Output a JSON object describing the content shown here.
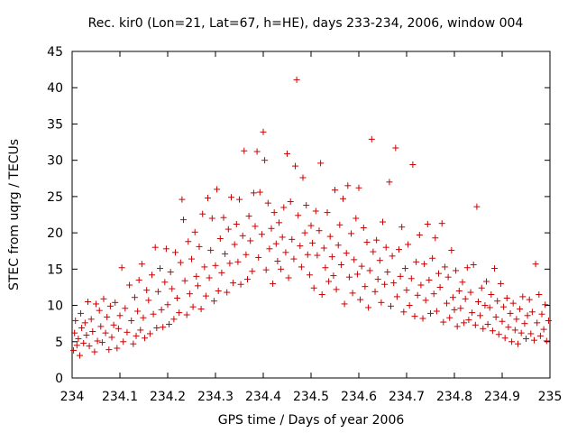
{
  "chart_data": {
    "type": "scatter",
    "title": "Rec. kir0 (Lon=21, Lat=67, h=HE), days 233-234, 2006, window 004",
    "xlabel": "GPS time / Days of year 2006",
    "ylabel": "STEC from uqrg / TECUs",
    "xlim": [
      234,
      235
    ],
    "ylim": [
      0,
      45
    ],
    "x_ticks": [
      "234",
      "234.1",
      "234.2",
      "234.3",
      "234.4",
      "234.5",
      "234.6",
      "234.7",
      "234.8",
      "234.9",
      "235"
    ],
    "y_ticks": [
      "0",
      "5",
      "10",
      "15",
      "20",
      "25",
      "30",
      "35",
      "40",
      "45"
    ],
    "grid": false,
    "legend": "none",
    "marker": "+",
    "color": "#cc0000",
    "series": [
      {
        "points": [
          [
            234.003,
            3.8
          ],
          [
            234.005,
            6.2
          ],
          [
            234.007,
            7.9
          ],
          [
            234.01,
            4.5
          ],
          [
            234.013,
            5.4
          ],
          [
            234.016,
            3.1
          ],
          [
            234.018,
            8.9
          ],
          [
            234.02,
            6.9
          ],
          [
            234.024,
            4.8
          ],
          [
            234.027,
            7.6
          ],
          [
            234.03,
            5.9
          ],
          [
            234.033,
            10.5
          ],
          [
            234.036,
            4.4
          ],
          [
            234.04,
            8.1
          ],
          [
            234.043,
            6.4
          ],
          [
            234.047,
            3.6
          ],
          [
            234.05,
            10.2
          ],
          [
            234.053,
            5.1
          ],
          [
            234.057,
            9.3
          ],
          [
            234.06,
            7.1
          ],
          [
            234.063,
            4.9
          ],
          [
            234.066,
            10.9
          ],
          [
            234.07,
            6.2
          ],
          [
            234.073,
            8.4
          ],
          [
            234.077,
            3.9
          ],
          [
            234.08,
            9.9
          ],
          [
            234.083,
            5.6
          ],
          [
            234.087,
            7.3
          ],
          [
            234.09,
            10.4
          ],
          [
            234.094,
            4.1
          ],
          [
            234.097,
            6.8
          ],
          [
            234.1,
            8.6
          ],
          [
            234.104,
            15.2
          ],
          [
            234.107,
            5.0
          ],
          [
            234.111,
            9.6
          ],
          [
            234.115,
            6.3
          ],
          [
            234.12,
            12.8
          ],
          [
            234.124,
            7.9
          ],
          [
            234.128,
            4.7
          ],
          [
            234.131,
            11.1
          ],
          [
            234.134,
            5.8
          ],
          [
            234.137,
            9.2
          ],
          [
            234.14,
            13.5
          ],
          [
            234.143,
            6.6
          ],
          [
            234.146,
            15.7
          ],
          [
            234.149,
            8.3
          ],
          [
            234.152,
            5.5
          ],
          [
            234.156,
            12.1
          ],
          [
            234.16,
            10.7
          ],
          [
            234.163,
            6.1
          ],
          [
            234.167,
            14.2
          ],
          [
            234.17,
            8.8
          ],
          [
            234.174,
            18.0
          ],
          [
            234.177,
            6.9
          ],
          [
            234.18,
            11.9
          ],
          [
            234.184,
            15.1
          ],
          [
            234.187,
            9.4
          ],
          [
            234.19,
            7.0
          ],
          [
            234.194,
            13.2
          ],
          [
            234.197,
            17.8
          ],
          [
            234.2,
            10.1
          ],
          [
            234.203,
            7.4
          ],
          [
            234.206,
            14.6
          ],
          [
            234.209,
            12.3
          ],
          [
            234.213,
            8.1
          ],
          [
            234.216,
            17.3
          ],
          [
            234.22,
            11.0
          ],
          [
            234.224,
            9.0
          ],
          [
            234.227,
            15.9
          ],
          [
            234.23,
            24.6
          ],
          [
            234.233,
            21.8
          ],
          [
            234.236,
            13.4
          ],
          [
            234.24,
            8.7
          ],
          [
            234.243,
            18.8
          ],
          [
            234.246,
            11.6
          ],
          [
            234.25,
            16.4
          ],
          [
            234.253,
            9.8
          ],
          [
            234.257,
            20.1
          ],
          [
            234.26,
            14.0
          ],
          [
            234.263,
            12.7
          ],
          [
            234.266,
            18.1
          ],
          [
            234.27,
            9.5
          ],
          [
            234.273,
            22.6
          ],
          [
            234.277,
            15.3
          ],
          [
            234.28,
            11.3
          ],
          [
            234.284,
            24.8
          ],
          [
            234.287,
            13.8
          ],
          [
            234.29,
            17.6
          ],
          [
            234.293,
            22.0
          ],
          [
            234.297,
            10.6
          ],
          [
            234.3,
            15.5
          ],
          [
            234.303,
            26.0
          ],
          [
            234.306,
            12.0
          ],
          [
            234.31,
            19.2
          ],
          [
            234.313,
            14.5
          ],
          [
            234.317,
            22.1
          ],
          [
            234.32,
            17.1
          ],
          [
            234.324,
            11.8
          ],
          [
            234.327,
            20.5
          ],
          [
            234.33,
            15.8
          ],
          [
            234.333,
            24.9
          ],
          [
            234.337,
            13.1
          ],
          [
            234.34,
            18.4
          ],
          [
            234.344,
            21.2
          ],
          [
            234.347,
            16.0
          ],
          [
            234.35,
            24.6
          ],
          [
            234.353,
            12.9
          ],
          [
            234.357,
            19.6
          ],
          [
            234.36,
            31.3
          ],
          [
            234.364,
            17.0
          ],
          [
            234.367,
            13.6
          ],
          [
            234.37,
            22.3
          ],
          [
            234.373,
            18.9
          ],
          [
            234.377,
            14.7
          ],
          [
            234.38,
            25.5
          ],
          [
            234.383,
            20.9
          ],
          [
            234.387,
            31.2
          ],
          [
            234.39,
            16.6
          ],
          [
            234.393,
            25.6
          ],
          [
            234.397,
            19.8
          ],
          [
            234.4,
            33.9
          ],
          [
            234.403,
            30.0
          ],
          [
            234.406,
            14.9
          ],
          [
            234.41,
            24.1
          ],
          [
            234.413,
            17.8
          ],
          [
            234.417,
            20.6
          ],
          [
            234.42,
            13.0
          ],
          [
            234.423,
            22.8
          ],
          [
            234.427,
            18.5
          ],
          [
            234.43,
            16.1
          ],
          [
            234.433,
            21.4
          ],
          [
            234.437,
            15.0
          ],
          [
            234.44,
            19.4
          ],
          [
            234.443,
            23.5
          ],
          [
            234.447,
            17.3
          ],
          [
            234.45,
            30.9
          ],
          [
            234.453,
            13.8
          ],
          [
            234.457,
            24.3
          ],
          [
            234.46,
            19.1
          ],
          [
            234.464,
            16.4
          ],
          [
            234.467,
            29.2
          ],
          [
            234.47,
            41.1
          ],
          [
            234.473,
            22.4
          ],
          [
            234.477,
            18.2
          ],
          [
            234.48,
            15.3
          ],
          [
            234.483,
            27.6
          ],
          [
            234.487,
            20.0
          ],
          [
            234.49,
            23.8
          ],
          [
            234.493,
            17.0
          ],
          [
            234.497,
            14.2
          ],
          [
            234.5,
            21.0
          ],
          [
            234.503,
            18.6
          ],
          [
            234.506,
            12.4
          ],
          [
            234.51,
            23.0
          ],
          [
            234.513,
            16.9
          ],
          [
            234.517,
            20.3
          ],
          [
            234.52,
            29.6
          ],
          [
            234.523,
            11.5
          ],
          [
            234.527,
            17.9
          ],
          [
            234.53,
            15.2
          ],
          [
            234.534,
            22.8
          ],
          [
            234.537,
            13.3
          ],
          [
            234.54,
            19.5
          ],
          [
            234.544,
            16.7
          ],
          [
            234.547,
            14.1
          ],
          [
            234.55,
            25.9
          ],
          [
            234.553,
            12.2
          ],
          [
            234.557,
            18.3
          ],
          [
            234.56,
            21.1
          ],
          [
            234.563,
            15.6
          ],
          [
            234.567,
            24.7
          ],
          [
            234.57,
            10.2
          ],
          [
            234.574,
            17.2
          ],
          [
            234.577,
            26.5
          ],
          [
            234.58,
            13.9
          ],
          [
            234.584,
            19.9
          ],
          [
            234.587,
            11.7
          ],
          [
            234.59,
            16.3
          ],
          [
            234.594,
            22.0
          ],
          [
            234.597,
            14.3
          ],
          [
            234.6,
            26.2
          ],
          [
            234.603,
            10.8
          ],
          [
            234.606,
            15.4
          ],
          [
            234.61,
            20.7
          ],
          [
            234.613,
            12.6
          ],
          [
            234.617,
            18.7
          ],
          [
            234.62,
            9.7
          ],
          [
            234.623,
            14.8
          ],
          [
            234.627,
            32.9
          ],
          [
            234.63,
            17.4
          ],
          [
            234.634,
            11.9
          ],
          [
            234.637,
            19.0
          ],
          [
            234.64,
            13.6
          ],
          [
            234.644,
            16.2
          ],
          [
            234.647,
            10.4
          ],
          [
            234.65,
            21.5
          ],
          [
            234.654,
            12.9
          ],
          [
            234.657,
            18.0
          ],
          [
            234.66,
            14.6
          ],
          [
            234.664,
            27.0
          ],
          [
            234.667,
            9.9
          ],
          [
            234.67,
            16.8
          ],
          [
            234.673,
            13.1
          ],
          [
            234.677,
            31.7
          ],
          [
            234.68,
            11.2
          ],
          [
            234.684,
            17.7
          ],
          [
            234.687,
            14.0
          ],
          [
            234.69,
            20.8
          ],
          [
            234.694,
            9.1
          ],
          [
            234.697,
            15.1
          ],
          [
            234.7,
            12.1
          ],
          [
            234.703,
            18.4
          ],
          [
            234.706,
            10.0
          ],
          [
            234.71,
            13.7
          ],
          [
            234.713,
            29.4
          ],
          [
            234.717,
            8.5
          ],
          [
            234.72,
            16.0
          ],
          [
            234.723,
            11.4
          ],
          [
            234.727,
            19.7
          ],
          [
            234.73,
            12.8
          ],
          [
            234.734,
            8.2
          ],
          [
            234.737,
            15.7
          ],
          [
            234.74,
            10.7
          ],
          [
            234.744,
            21.2
          ],
          [
            234.747,
            13.5
          ],
          [
            234.75,
            8.9
          ],
          [
            234.754,
            16.5
          ],
          [
            234.757,
            11.6
          ],
          [
            234.76,
            19.3
          ],
          [
            234.763,
            9.2
          ],
          [
            234.767,
            14.4
          ],
          [
            234.77,
            12.5
          ],
          [
            234.774,
            21.3
          ],
          [
            234.777,
            7.7
          ],
          [
            234.78,
            15.3
          ],
          [
            234.784,
            10.3
          ],
          [
            234.787,
            13.9
          ],
          [
            234.79,
            8.3
          ],
          [
            234.794,
            17.6
          ],
          [
            234.797,
            11.1
          ],
          [
            234.8,
            9.4
          ],
          [
            234.803,
            14.8
          ],
          [
            234.806,
            7.1
          ],
          [
            234.81,
            12.0
          ],
          [
            234.813,
            9.6
          ],
          [
            234.817,
            13.2
          ],
          [
            234.82,
            7.6
          ],
          [
            234.823,
            10.9
          ],
          [
            234.827,
            15.2
          ],
          [
            234.83,
            8.0
          ],
          [
            234.834,
            11.8
          ],
          [
            234.837,
            9.0
          ],
          [
            234.84,
            15.6
          ],
          [
            234.844,
            7.3
          ],
          [
            234.847,
            23.6
          ],
          [
            234.85,
            10.5
          ],
          [
            234.854,
            8.6
          ],
          [
            234.857,
            12.4
          ],
          [
            234.86,
            6.8
          ],
          [
            234.864,
            10.0
          ],
          [
            234.867,
            13.3
          ],
          [
            234.87,
            7.4
          ],
          [
            234.874,
            9.7
          ],
          [
            234.877,
            11.5
          ],
          [
            234.88,
            6.5
          ],
          [
            234.884,
            15.1
          ],
          [
            234.887,
            8.4
          ],
          [
            234.89,
            10.6
          ],
          [
            234.893,
            6.0
          ],
          [
            234.897,
            13.0
          ],
          [
            234.9,
            7.8
          ],
          [
            234.903,
            9.8
          ],
          [
            234.906,
            5.5
          ],
          [
            234.91,
            11.0
          ],
          [
            234.913,
            7.0
          ],
          [
            234.917,
            8.9
          ],
          [
            234.92,
            5.0
          ],
          [
            234.923,
            10.3
          ],
          [
            234.927,
            6.6
          ],
          [
            234.93,
            8.1
          ],
          [
            234.933,
            4.7
          ],
          [
            234.937,
            9.5
          ],
          [
            234.94,
            6.2
          ],
          [
            234.943,
            11.2
          ],
          [
            234.947,
            7.5
          ],
          [
            234.95,
            5.4
          ],
          [
            234.953,
            8.6
          ],
          [
            234.957,
            10.8
          ],
          [
            234.96,
            6.1
          ],
          [
            234.963,
            9.1
          ],
          [
            234.967,
            5.2
          ],
          [
            234.97,
            15.7
          ],
          [
            234.973,
            7.6
          ],
          [
            234.977,
            11.5
          ],
          [
            234.98,
            5.8
          ],
          [
            234.983,
            8.8
          ],
          [
            234.987,
            6.7
          ],
          [
            234.99,
            10.1
          ],
          [
            234.993,
            5.1
          ],
          [
            234.997,
            7.9
          ]
        ]
      }
    ]
  }
}
